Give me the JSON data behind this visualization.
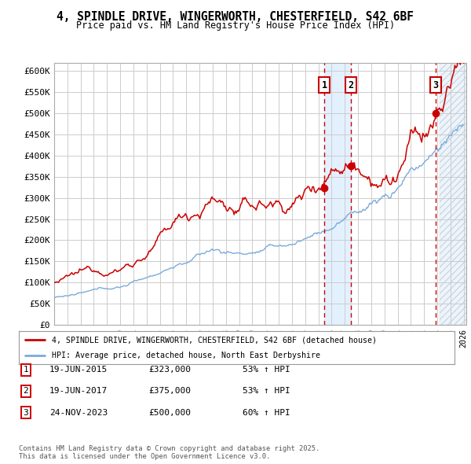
{
  "title": "4, SPINDLE DRIVE, WINGERWORTH, CHESTERFIELD, S42 6BF",
  "subtitle": "Price paid vs. HM Land Registry's House Price Index (HPI)",
  "ylim": [
    0,
    620000
  ],
  "yticks": [
    0,
    50000,
    100000,
    150000,
    200000,
    250000,
    300000,
    350000,
    400000,
    450000,
    500000,
    550000,
    600000
  ],
  "ytick_labels": [
    "£0",
    "£50K",
    "£100K",
    "£150K",
    "£200K",
    "£250K",
    "£300K",
    "£350K",
    "£400K",
    "£450K",
    "£500K",
    "£550K",
    "£600K"
  ],
  "xlim_start": 1995.0,
  "xlim_end": 2026.2,
  "bg_color": "#ffffff",
  "grid_color": "#cccccc",
  "red_color": "#cc0000",
  "blue_color": "#7aabda",
  "sale_dates": [
    2015.46,
    2017.46,
    2023.9
  ],
  "sale_prices": [
    323000,
    375000,
    500000
  ],
  "sale_labels": [
    "1",
    "2",
    "3"
  ],
  "sale_info": [
    {
      "label": "1",
      "date": "19-JUN-2015",
      "price": "£323,000",
      "hpi": "53% ↑ HPI"
    },
    {
      "label": "2",
      "date": "19-JUN-2017",
      "price": "£375,000",
      "hpi": "53% ↑ HPI"
    },
    {
      "label": "3",
      "date": "24-NOV-2023",
      "price": "£500,000",
      "hpi": "60% ↑ HPI"
    }
  ],
  "legend_line1": "4, SPINDLE DRIVE, WINGERWORTH, CHESTERFIELD, S42 6BF (detached house)",
  "legend_line2": "HPI: Average price, detached house, North East Derbyshire",
  "footnote": "Contains HM Land Registry data © Crown copyright and database right 2025.\nThis data is licensed under the Open Government Licence v3.0.",
  "shaded_region": [
    2015.46,
    2017.46
  ],
  "hatch_region_start": 2024.17,
  "hatch_region_end": 2026.2
}
